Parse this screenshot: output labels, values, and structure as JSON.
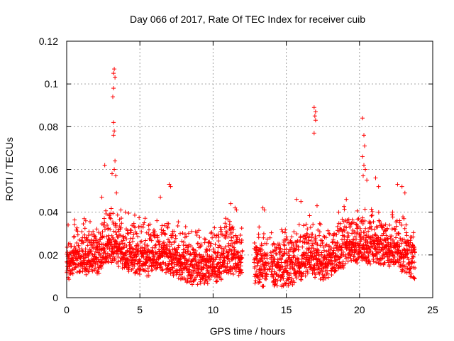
{
  "chart_data": {
    "type": "scatter",
    "title": "Day 066 of 2017, Rate Of TEC Index for receiver cuib",
    "xlabel": "GPS time / hours",
    "ylabel": "ROTI / TECUs",
    "xlim": [
      0,
      25
    ],
    "ylim": [
      0,
      0.12
    ],
    "xticks": [
      0,
      5,
      10,
      15,
      20,
      25
    ],
    "xtick_labels": [
      "0",
      "5",
      "10",
      "15",
      "20",
      "25"
    ],
    "yticks": [
      0,
      0.02,
      0.04,
      0.06,
      0.08,
      0.1,
      0.12
    ],
    "ytick_labels": [
      "0",
      "0.02",
      "0.04",
      "0.06",
      "0.08",
      "0.1",
      "0.12"
    ],
    "grid": true,
    "marker": "+",
    "color": "#ff0000",
    "data_gap": [
      12.0,
      12.8
    ],
    "baseline": [
      [
        0.0,
        0.013
      ],
      [
        0.5,
        0.016
      ],
      [
        1.0,
        0.016
      ],
      [
        1.5,
        0.017
      ],
      [
        2.0,
        0.017
      ],
      [
        2.5,
        0.018
      ],
      [
        3.0,
        0.022
      ],
      [
        3.5,
        0.02
      ],
      [
        4.0,
        0.018
      ],
      [
        4.5,
        0.017
      ],
      [
        5.0,
        0.016
      ],
      [
        5.5,
        0.016
      ],
      [
        6.0,
        0.017
      ],
      [
        6.5,
        0.018
      ],
      [
        7.0,
        0.017
      ],
      [
        7.5,
        0.015
      ],
      [
        8.0,
        0.013
      ],
      [
        8.5,
        0.012
      ],
      [
        9.0,
        0.012
      ],
      [
        9.5,
        0.012
      ],
      [
        10.0,
        0.012
      ],
      [
        10.5,
        0.014
      ],
      [
        11.0,
        0.017
      ],
      [
        11.5,
        0.016
      ],
      [
        12.0,
        0.015
      ],
      [
        12.8,
        0.011
      ],
      [
        13.5,
        0.011
      ],
      [
        14.0,
        0.011
      ],
      [
        14.5,
        0.011
      ],
      [
        15.0,
        0.011
      ],
      [
        15.5,
        0.012
      ],
      [
        16.0,
        0.014
      ],
      [
        16.5,
        0.017
      ],
      [
        17.0,
        0.015
      ],
      [
        17.5,
        0.013
      ],
      [
        18.0,
        0.015
      ],
      [
        18.5,
        0.018
      ],
      [
        19.0,
        0.02
      ],
      [
        19.5,
        0.021
      ],
      [
        20.0,
        0.022
      ],
      [
        20.5,
        0.022
      ],
      [
        21.0,
        0.021
      ],
      [
        21.5,
        0.021
      ],
      [
        22.0,
        0.02
      ],
      [
        22.5,
        0.019
      ],
      [
        23.0,
        0.017
      ],
      [
        23.5,
        0.015
      ],
      [
        23.8,
        0.014
      ]
    ],
    "outliers": [
      [
        3.2,
        0.105
      ],
      [
        3.25,
        0.107
      ],
      [
        3.3,
        0.103
      ],
      [
        3.2,
        0.098
      ],
      [
        3.15,
        0.094
      ],
      [
        3.2,
        0.082
      ],
      [
        3.25,
        0.078
      ],
      [
        3.2,
        0.076
      ],
      [
        3.3,
        0.064
      ],
      [
        3.25,
        0.06
      ],
      [
        3.1,
        0.058
      ],
      [
        3.35,
        0.057
      ],
      [
        2.6,
        0.062
      ],
      [
        2.4,
        0.047
      ],
      [
        3.4,
        0.049
      ],
      [
        16.9,
        0.089
      ],
      [
        17.0,
        0.087
      ],
      [
        16.95,
        0.085
      ],
      [
        17.0,
        0.083
      ],
      [
        16.9,
        0.077
      ],
      [
        20.2,
        0.084
      ],
      [
        20.3,
        0.076
      ],
      [
        20.35,
        0.071
      ],
      [
        20.2,
        0.066
      ],
      [
        20.3,
        0.062
      ],
      [
        20.4,
        0.06
      ],
      [
        20.25,
        0.057
      ],
      [
        20.5,
        0.055
      ],
      [
        21.1,
        0.056
      ],
      [
        21.3,
        0.052
      ],
      [
        22.6,
        0.053
      ],
      [
        22.9,
        0.052
      ],
      [
        23.1,
        0.049
      ],
      [
        6.4,
        0.047
      ],
      [
        7.0,
        0.053
      ],
      [
        7.1,
        0.052
      ],
      [
        13.4,
        0.042
      ],
      [
        13.5,
        0.041
      ],
      [
        11.5,
        0.042
      ],
      [
        11.6,
        0.041
      ],
      [
        11.2,
        0.044
      ],
      [
        19.1,
        0.046
      ],
      [
        15.7,
        0.046
      ],
      [
        16.0,
        0.045
      ],
      [
        17.1,
        0.043
      ],
      [
        4.0,
        0.04
      ],
      [
        3.7,
        0.041
      ],
      [
        1.2,
        0.037
      ],
      [
        1.3,
        0.036
      ],
      [
        0.1,
        0.034
      ]
    ],
    "spread_note": "Dense point cloud between about 0.005 and 0.045 TECU/s across 0-12 h and 12.8-23.8 h; values sampled around the baseline with upward scatter."
  }
}
